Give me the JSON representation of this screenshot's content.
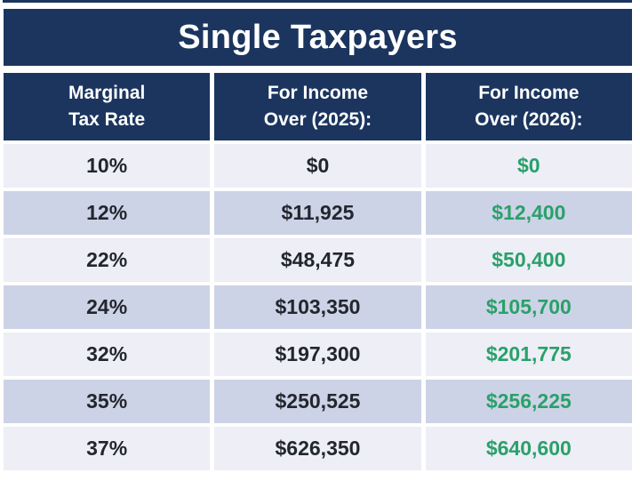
{
  "colors": {
    "navy": "#1b355e",
    "row_light": "#edeef6",
    "row_dark": "#cdd3e6",
    "green": "#2aa06a",
    "text_dark": "#22262e",
    "background": "#ffffff"
  },
  "title": "Single Taxpayers",
  "header": {
    "col1": "Marginal\nTax Rate",
    "col2": "For Income\nOver (2025):",
    "col3": "For Income\nOver (2026):"
  },
  "rows": [
    {
      "rate": "10%",
      "y2025": "$0",
      "y2026": "$0"
    },
    {
      "rate": "12%",
      "y2025": "$11,925",
      "y2026": "$12,400"
    },
    {
      "rate": "22%",
      "y2025": "$48,475",
      "y2026": "$50,400"
    },
    {
      "rate": "24%",
      "y2025": "$103,350",
      "y2026": "$105,700"
    },
    {
      "rate": "32%",
      "y2025": "$197,300",
      "y2026": "$201,775"
    },
    {
      "rate": "35%",
      "y2025": "$250,525",
      "y2026": "$256,225"
    },
    {
      "rate": "37%",
      "y2025": "$626,350",
      "y2026": "$640,600"
    }
  ],
  "chart_data": {
    "type": "table",
    "title": "Single Taxpayers",
    "columns": [
      "Marginal Tax Rate",
      "For Income Over (2025):",
      "For Income Over (2026):"
    ],
    "rows": [
      [
        "10%",
        "$0",
        "$0"
      ],
      [
        "12%",
        "$11,925",
        "$12,400"
      ],
      [
        "22%",
        "$48,475",
        "$50,400"
      ],
      [
        "24%",
        "$103,350",
        "$105,700"
      ],
      [
        "32%",
        "$197,300",
        "$201,775"
      ],
      [
        "35%",
        "$250,525",
        "$256,225"
      ],
      [
        "37%",
        "$626,350",
        "$640,600"
      ]
    ]
  }
}
